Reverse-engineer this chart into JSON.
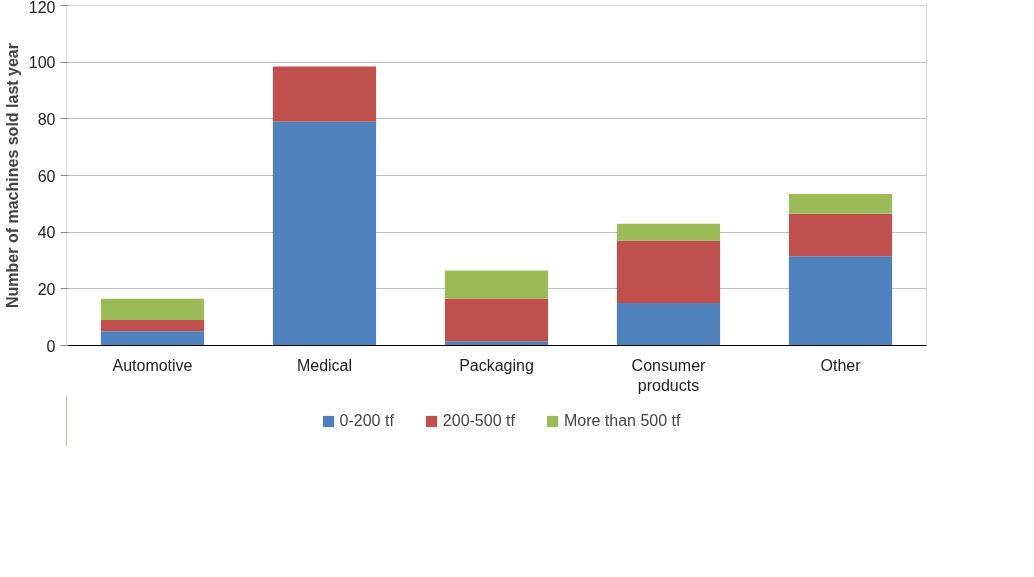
{
  "chart_data": {
    "type": "bar",
    "stacked": true,
    "ylabel": "Number of machines sold last year",
    "categories": [
      "Automotive",
      "Medical",
      "Packaging",
      "Consumer products",
      "Other"
    ],
    "series": [
      {
        "name": "0-200 tf",
        "color": "#4f81bd",
        "values": [
          5,
          79,
          1.5,
          15,
          31.5
        ]
      },
      {
        "name": "200-500 tf",
        "color": "#c0504d",
        "values": [
          4,
          19.5,
          15,
          22,
          15
        ]
      },
      {
        "name": "More than 500 tf",
        "color": "#9bbb59",
        "values": [
          7.5,
          0,
          10,
          6,
          7
        ]
      }
    ],
    "ylim": [
      0,
      120
    ],
    "yticks": [
      0,
      20,
      40,
      60,
      80,
      100,
      120
    ],
    "grid": "y",
    "legend": "bottom"
  }
}
